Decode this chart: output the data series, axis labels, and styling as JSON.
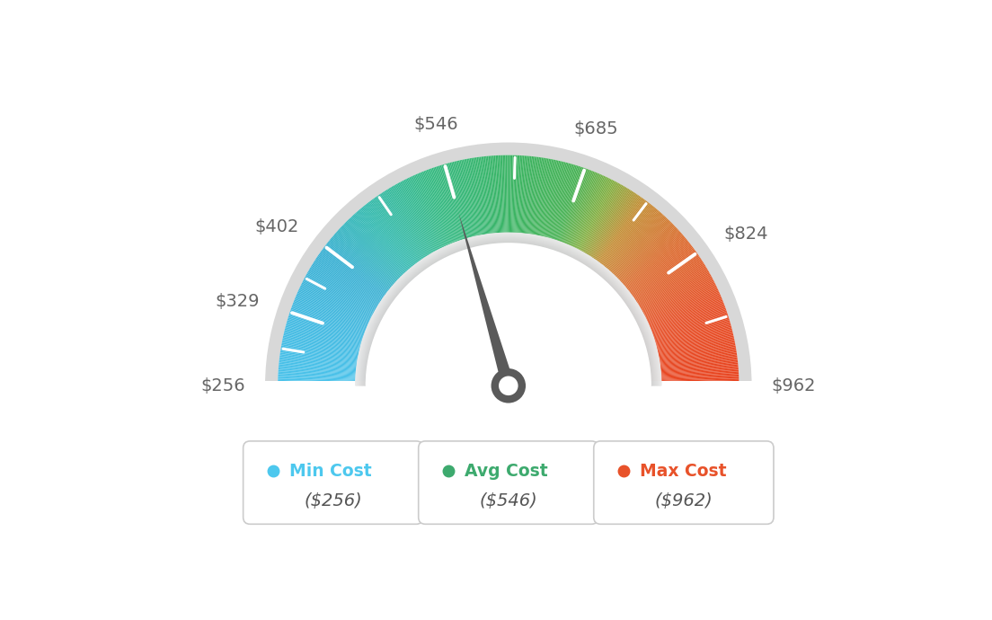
{
  "min_val": 256,
  "max_val": 962,
  "avg_val": 546,
  "label_values": [
    256,
    329,
    402,
    546,
    685,
    824,
    962
  ],
  "min_cost_label": "Min Cost",
  "avg_cost_label": "Avg Cost",
  "max_cost_label": "Max Cost",
  "min_cost_value": "($256)",
  "avg_cost_value": "($546)",
  "max_cost_value": "($962)",
  "min_color": "#4DC8EE",
  "avg_color": "#3DAA6E",
  "max_color": "#E8522A",
  "needle_color": "#5a5a5a",
  "bg_color": "#ffffff",
  "label_color": "#666666",
  "box_border_color": "#cccccc",
  "color_stops": [
    [
      0.0,
      [
        75,
        195,
        235
      ]
    ],
    [
      0.1,
      [
        65,
        185,
        225
      ]
    ],
    [
      0.2,
      [
        55,
        175,
        210
      ]
    ],
    [
      0.28,
      [
        50,
        185,
        175
      ]
    ],
    [
      0.38,
      [
        52,
        185,
        130
      ]
    ],
    [
      0.5,
      [
        58,
        180,
        100
      ]
    ],
    [
      0.6,
      [
        72,
        178,
        85
      ]
    ],
    [
      0.65,
      [
        130,
        175,
        65
      ]
    ],
    [
      0.7,
      [
        195,
        140,
        50
      ]
    ],
    [
      0.78,
      [
        220,
        105,
        45
      ]
    ],
    [
      0.88,
      [
        230,
        80,
        40
      ]
    ],
    [
      1.0,
      [
        232,
        68,
        32
      ]
    ]
  ]
}
